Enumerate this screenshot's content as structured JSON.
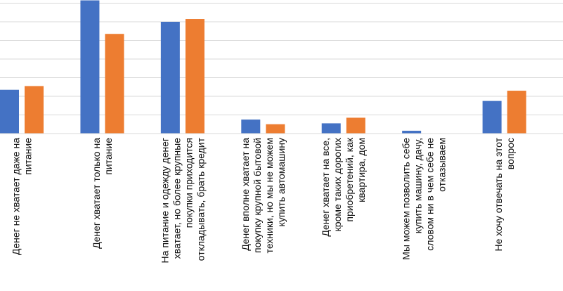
{
  "chart_data": {
    "type": "bar",
    "title": "",
    "xlabel": "",
    "ylabel": "",
    "ylim": [
      0,
      70
    ],
    "grid": true,
    "legend": "none",
    "categories": [
      [
        "Денег не хватает даже на",
        "питание"
      ],
      [
        "Денег хватает только на",
        "питание"
      ],
      [
        "На питание и одежду денег",
        "хватает, но более крупные",
        "покупки приходится",
        "откладывать, брать кредит"
      ],
      [
        "Денег вполне хватает на",
        "покупку крупной бытовой",
        "техники, но мы не можем",
        "купить автомашину"
      ],
      [
        "Денег хватает на все,",
        "кроме таких дорогих",
        "приобретений, как",
        "квартира, дом"
      ],
      [
        "Мы можем позволить себе",
        "купить машину, дачу,",
        "словом ни в чем себе не",
        "отказываем"
      ],
      [
        "Не хочу отвечать на этот",
        "вопрос"
      ]
    ],
    "series": [
      {
        "color": "#4472c4",
        "values": [
          23.5,
          71.5,
          60,
          7.5,
          5.5,
          1.5,
          17.5
        ]
      },
      {
        "color": "#ed7d31",
        "values": [
          25.5,
          53.5,
          61.5,
          5,
          8.5,
          0,
          23
        ]
      }
    ]
  }
}
